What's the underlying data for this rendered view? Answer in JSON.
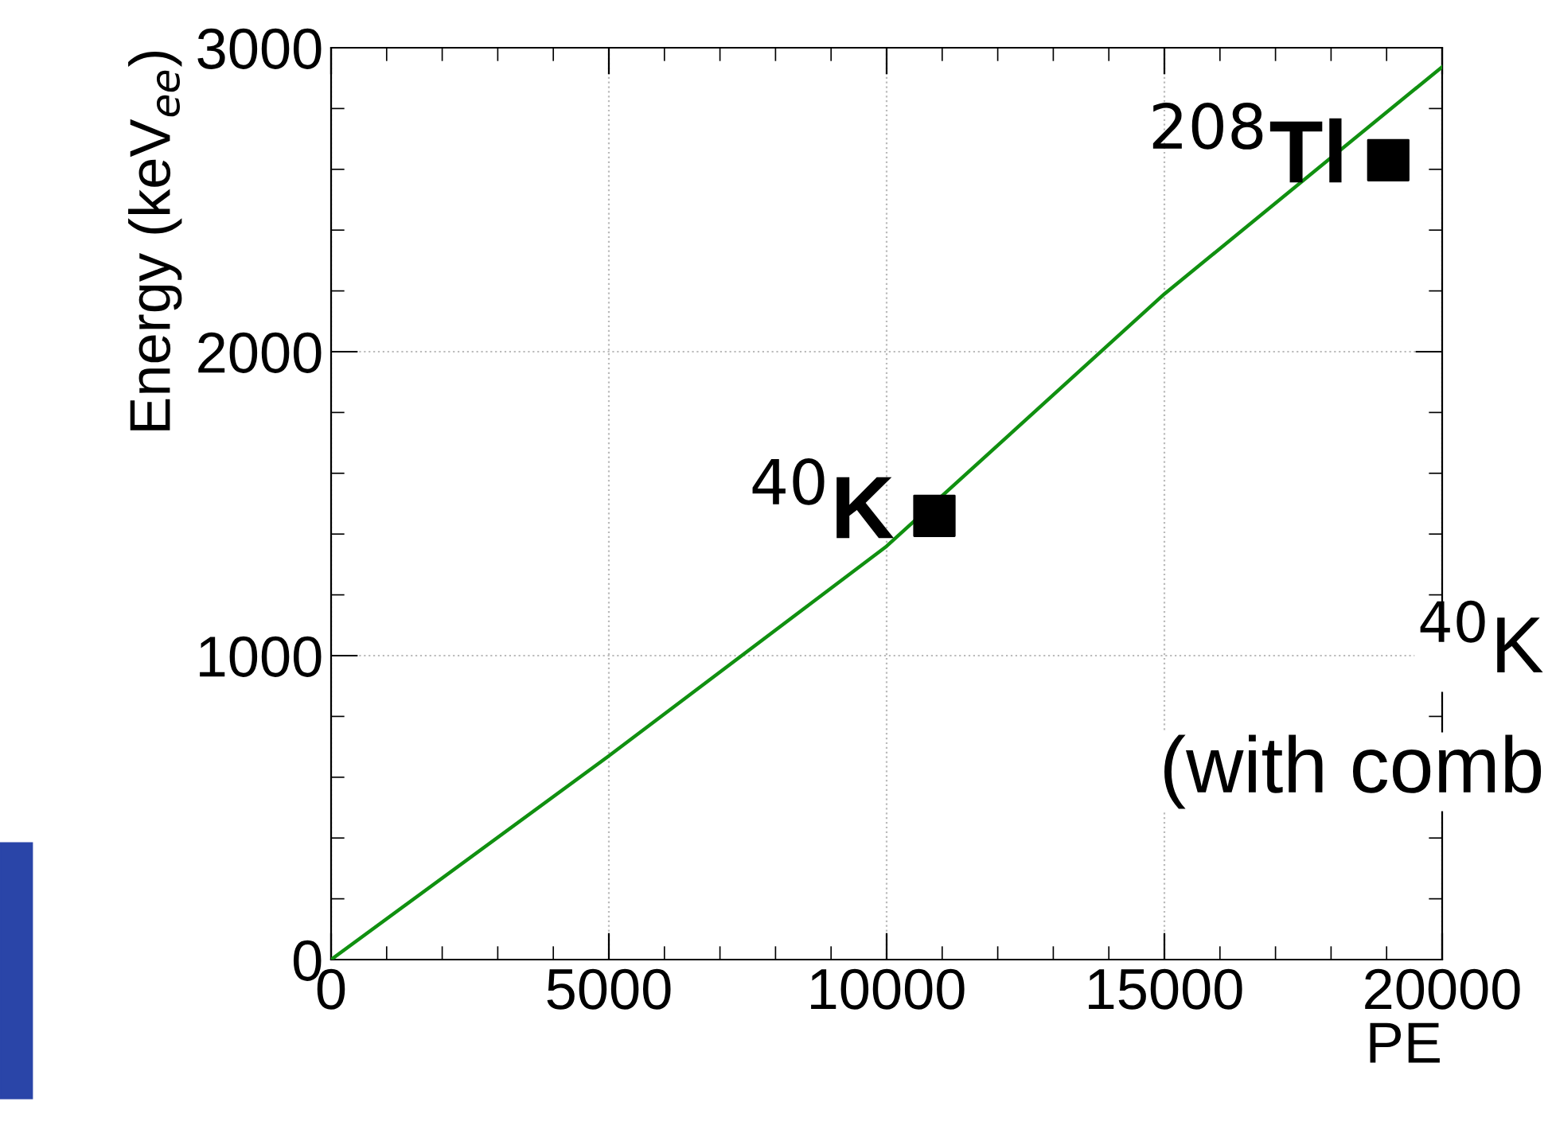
{
  "chart_data": {
    "type": "scatter",
    "xlabel": "PE",
    "ylabel": "Energy (keV$_{ee}$)",
    "xlim": [
      0,
      20000
    ],
    "ylim": [
      0,
      3000
    ],
    "xticks": [
      0,
      5000,
      10000,
      15000,
      20000
    ],
    "yticks": [
      0,
      1000,
      2000,
      3000
    ],
    "grid": true,
    "series": [
      {
        "type": "line",
        "color": "#109010",
        "x": [
          0,
          5000,
          10000,
          15000,
          20000
        ],
        "values": [
          0,
          670,
          1360,
          2190,
          2937
        ],
        "marker": "none",
        "line_style": "solid"
      },
      {
        "color": "#000000",
        "x": [
          10860,
          19030
        ],
        "values": [
          1460,
          2630
        ],
        "marker": "square"
      }
    ],
    "annotations": [
      {
        "text": "$^{40}$K",
        "x": 10860,
        "y": 1460
      },
      {
        "text": "$^{208}$Tl",
        "x": 19030,
        "y": 2630
      },
      "$^{40}$K",
      "(with comb"
    ]
  }
}
